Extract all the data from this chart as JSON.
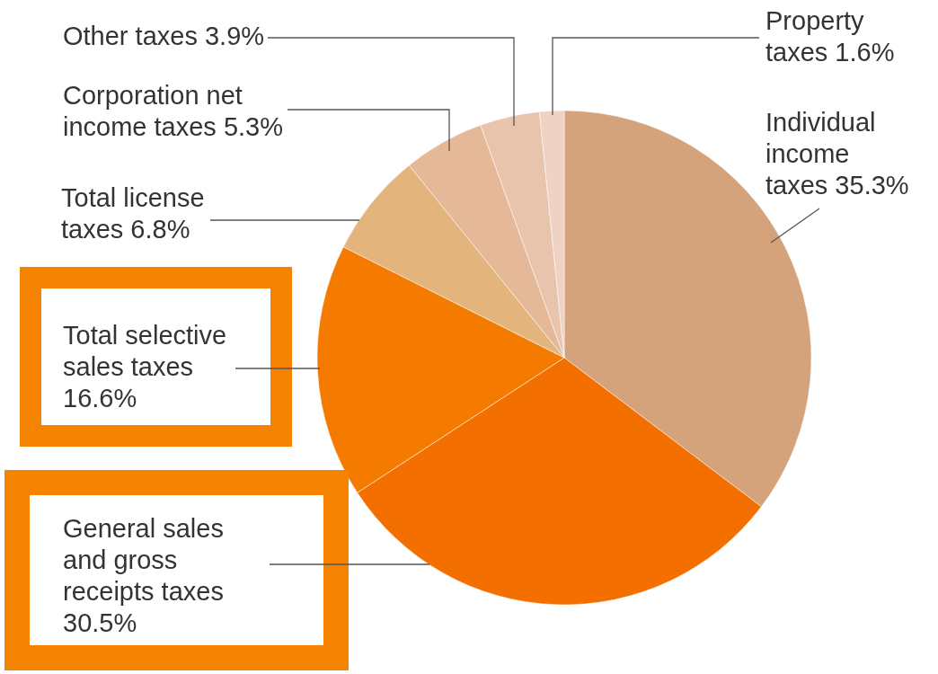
{
  "chart_data": {
    "type": "pie",
    "categories": [
      "Individual income taxes",
      "General sales and gross receipts taxes",
      "Total selective sales taxes",
      "Total license taxes",
      "Corporation net income taxes",
      "Other taxes",
      "Property taxes"
    ],
    "values": [
      35.3,
      30.5,
      16.6,
      6.8,
      5.3,
      3.9,
      1.6
    ],
    "value_labels": [
      "35.3%",
      "30.5%",
      "16.6%",
      "6.8%",
      "5.3%",
      "3.9%",
      "1.6%"
    ],
    "colors": [
      "#d4a37b",
      "#f26f00",
      "#f57b00",
      "#e3b47b",
      "#e5b898",
      "#e9c4ad",
      "#efd2c3"
    ]
  }
}
